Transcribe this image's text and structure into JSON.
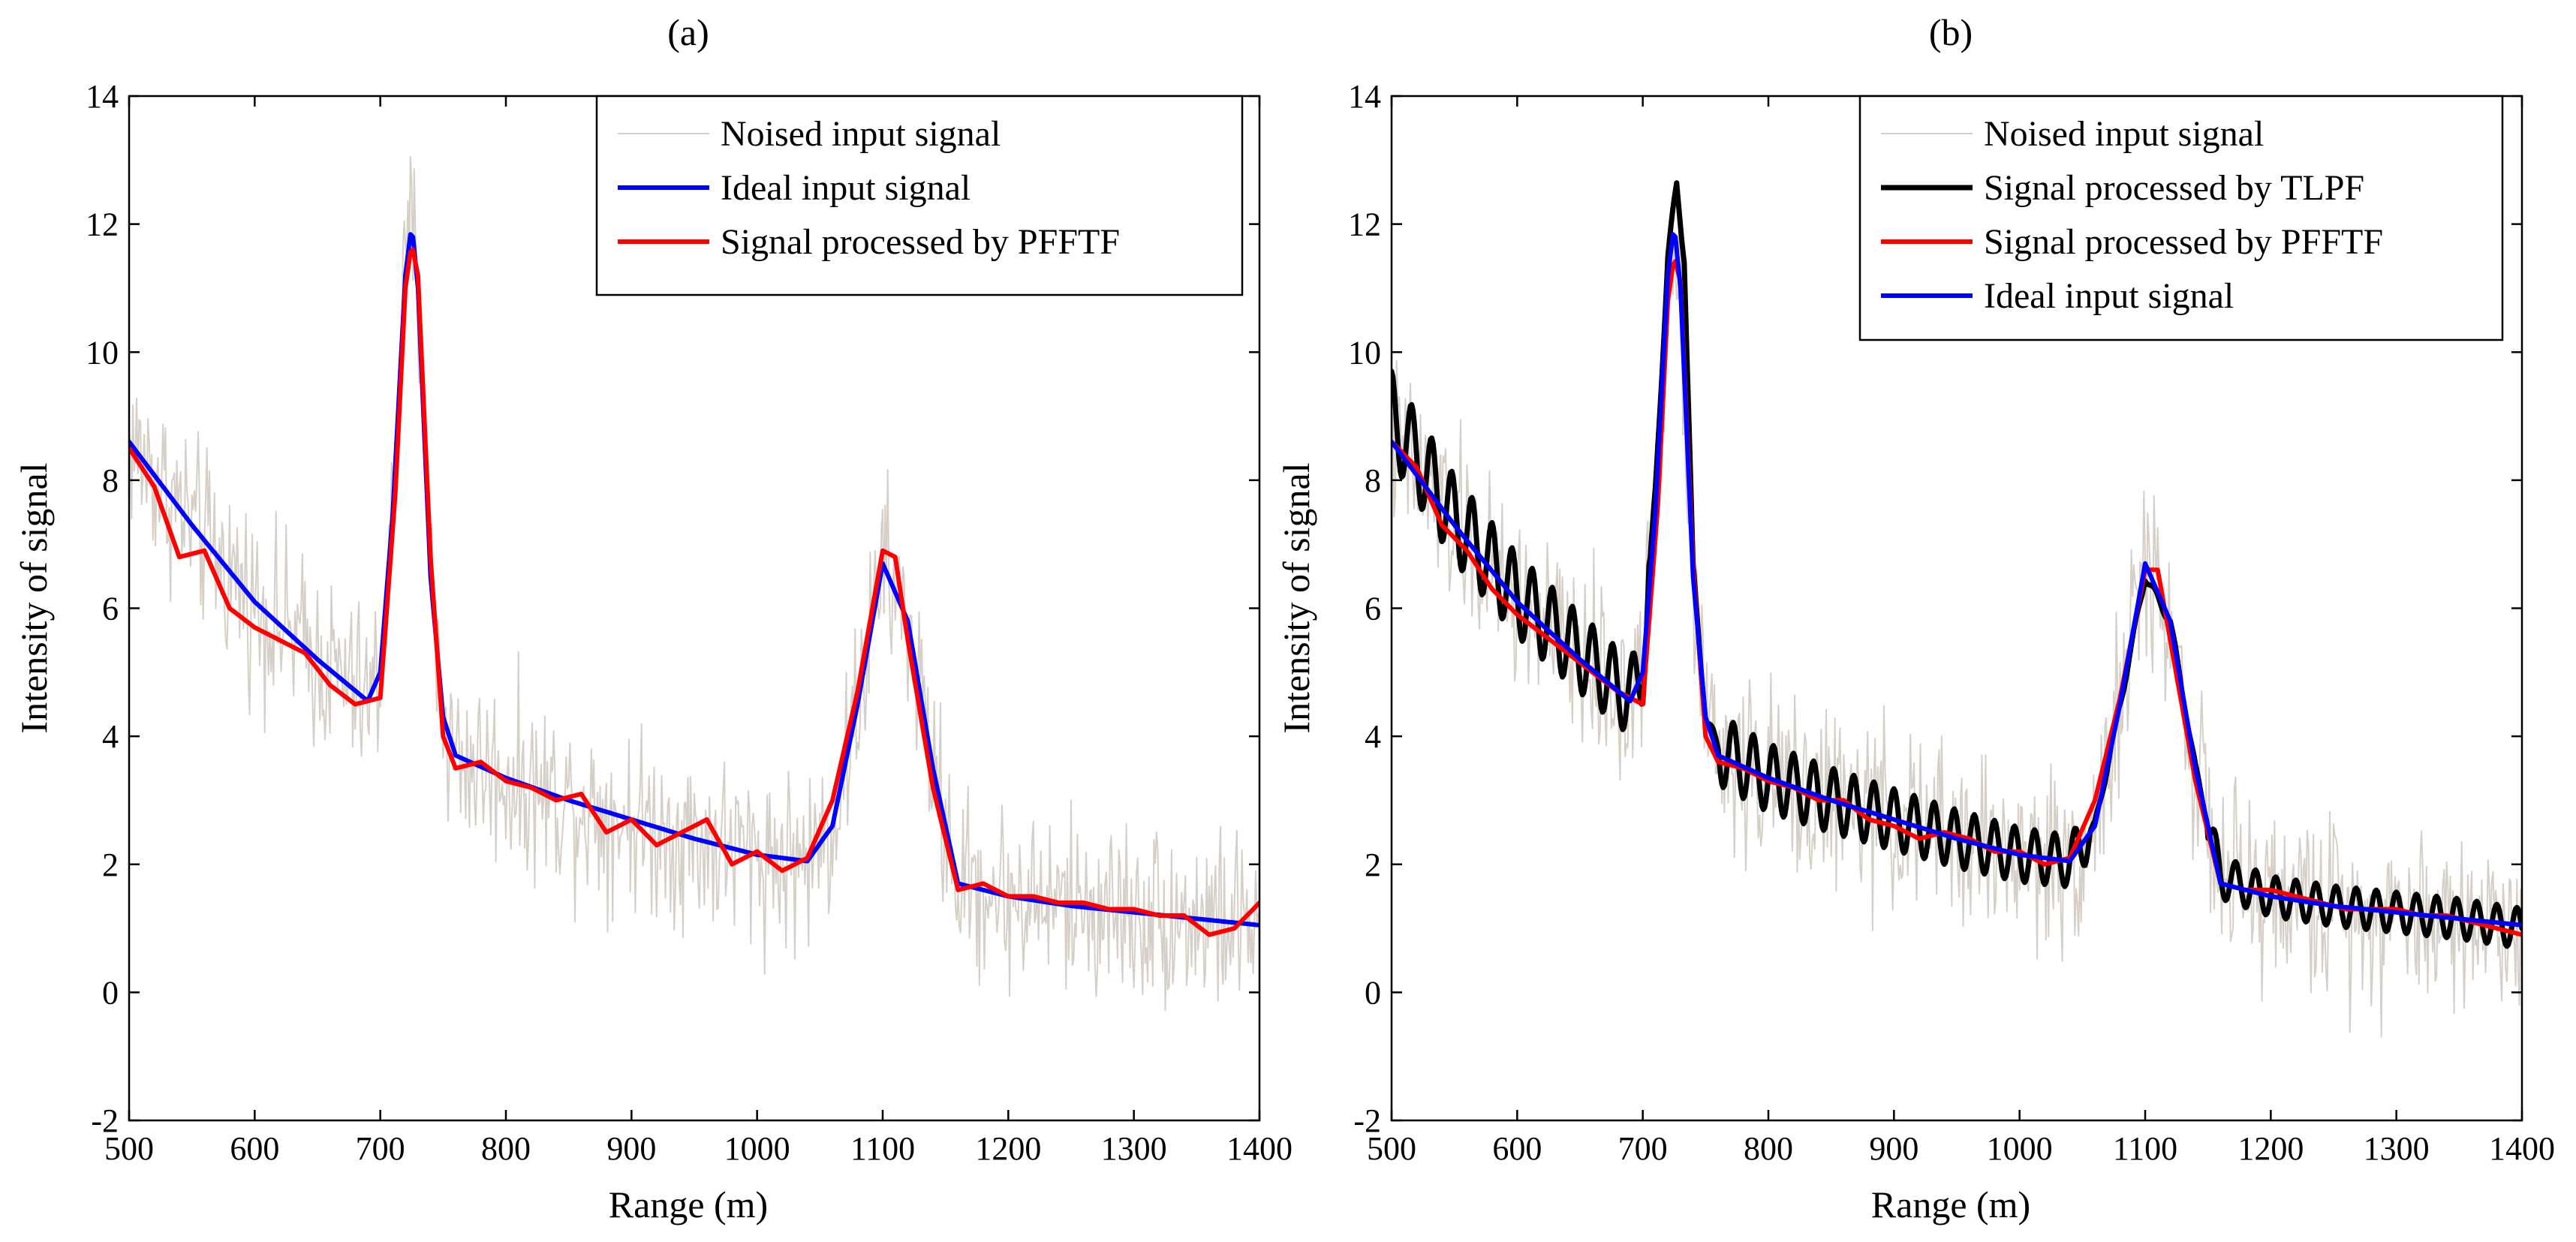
{
  "chart_data": [
    {
      "type": "line",
      "title": "(a)",
      "xlabel": "Range (m)",
      "ylabel": "Intensity of signal",
      "xlim": [
        500,
        1400
      ],
      "ylim": [
        -2,
        14
      ],
      "xticks": [
        500,
        600,
        700,
        800,
        900,
        1000,
        1100,
        1200,
        1300,
        1400
      ],
      "yticks": [
        -2,
        0,
        2,
        4,
        6,
        8,
        10,
        12,
        14
      ],
      "legend_position": "top-right",
      "series": [
        {
          "name": "Noised input signal",
          "color": "#d6cfc7",
          "kind": "noised",
          "noise_amplitude": 1.4,
          "x": [
            500,
            550,
            600,
            650,
            690,
            700,
            710,
            720,
            725,
            730,
            740,
            750,
            760,
            800,
            850,
            900,
            950,
            1000,
            1040,
            1060,
            1080,
            1100,
            1120,
            1140,
            1160,
            1200,
            1250,
            1300,
            1350,
            1400
          ],
          "y": [
            8.6,
            7.3,
            6.1,
            5.2,
            4.55,
            5.0,
            7.5,
            11.2,
            12.0,
            11.0,
            6.5,
            4.3,
            3.7,
            3.35,
            3.0,
            2.7,
            2.4,
            2.15,
            2.05,
            2.6,
            4.5,
            6.7,
            5.8,
            3.5,
            1.7,
            1.5,
            1.35,
            1.25,
            1.15,
            1.05
          ]
        },
        {
          "name": "Ideal input signal",
          "color": "#0000ff",
          "kind": "ideal",
          "x": [
            500,
            550,
            600,
            650,
            690,
            700,
            710,
            720,
            725,
            730,
            740,
            750,
            760,
            800,
            850,
            900,
            950,
            1000,
            1040,
            1060,
            1080,
            1100,
            1120,
            1140,
            1160,
            1200,
            1250,
            1300,
            1350,
            1400
          ],
          "y": [
            8.6,
            7.3,
            6.1,
            5.2,
            4.55,
            5.0,
            7.5,
            11.2,
            12.0,
            11.0,
            6.5,
            4.3,
            3.7,
            3.35,
            3.0,
            2.7,
            2.4,
            2.15,
            2.05,
            2.6,
            4.5,
            6.7,
            5.8,
            3.5,
            1.7,
            1.5,
            1.35,
            1.25,
            1.15,
            1.05
          ]
        },
        {
          "name": "Signal processed by PFFTF",
          "color": "#ff0000",
          "kind": "processed",
          "x": [
            500,
            520,
            540,
            560,
            580,
            600,
            620,
            640,
            660,
            680,
            700,
            712,
            720,
            725,
            730,
            740,
            750,
            760,
            780,
            800,
            820,
            840,
            860,
            880,
            900,
            920,
            940,
            960,
            980,
            1000,
            1020,
            1040,
            1060,
            1080,
            1100,
            1110,
            1120,
            1140,
            1160,
            1180,
            1200,
            1220,
            1240,
            1260,
            1280,
            1300,
            1320,
            1340,
            1360,
            1380,
            1400
          ],
          "y": [
            8.5,
            7.9,
            6.8,
            6.9,
            6.0,
            5.7,
            5.5,
            5.3,
            4.8,
            4.5,
            4.6,
            7.8,
            11.0,
            11.7,
            11.2,
            6.8,
            4.0,
            3.5,
            3.6,
            3.3,
            3.2,
            3.0,
            3.1,
            2.5,
            2.7,
            2.3,
            2.5,
            2.7,
            2.0,
            2.2,
            1.9,
            2.1,
            3.0,
            4.7,
            6.9,
            6.8,
            5.5,
            3.2,
            1.6,
            1.7,
            1.5,
            1.5,
            1.4,
            1.4,
            1.3,
            1.3,
            1.2,
            1.2,
            0.9,
            1.0,
            1.4
          ]
        }
      ]
    },
    {
      "type": "line",
      "title": "(b)",
      "xlabel": "Range (m)",
      "ylabel": "Intensity of signal",
      "xlim": [
        500,
        1400
      ],
      "ylim": [
        -2,
        14
      ],
      "xticks": [
        500,
        600,
        700,
        800,
        900,
        1000,
        1100,
        1200,
        1300,
        1400
      ],
      "yticks": [
        -2,
        0,
        2,
        4,
        6,
        8,
        10,
        12,
        14
      ],
      "legend_position": "top-right",
      "series": [
        {
          "name": "Noised input signal",
          "color": "#d6cfc7",
          "kind": "noised",
          "noise_amplitude": 1.4,
          "x": [
            500,
            550,
            600,
            650,
            690,
            700,
            710,
            720,
            725,
            730,
            740,
            750,
            760,
            800,
            850,
            900,
            950,
            1000,
            1040,
            1060,
            1080,
            1100,
            1120,
            1140,
            1160,
            1200,
            1250,
            1300,
            1350,
            1400
          ],
          "y": [
            8.6,
            7.3,
            6.1,
            5.2,
            4.55,
            5.0,
            7.5,
            11.2,
            12.0,
            11.0,
            6.5,
            4.3,
            3.7,
            3.35,
            3.0,
            2.7,
            2.4,
            2.15,
            2.05,
            2.6,
            4.5,
            6.7,
            5.8,
            3.5,
            1.7,
            1.5,
            1.35,
            1.25,
            1.15,
            1.05
          ]
        },
        {
          "name": "Signal processed by TLPF",
          "color": "#000000",
          "kind": "oscillating",
          "oscillation_amplitude": 0.7,
          "oscillation_period": 16,
          "x": [
            500,
            550,
            600,
            650,
            690,
            700,
            710,
            720,
            727,
            733,
            740,
            750,
            760,
            800,
            850,
            900,
            950,
            1000,
            1040,
            1060,
            1080,
            1100,
            1120,
            1140,
            1160,
            1200,
            1250,
            1300,
            1350,
            1400
          ],
          "y": [
            9.0,
            7.4,
            6.2,
            5.3,
            4.6,
            5.1,
            7.8,
            11.5,
            12.6,
            11.5,
            6.6,
            4.3,
            3.8,
            3.35,
            3.0,
            2.7,
            2.4,
            2.15,
            2.05,
            2.6,
            4.5,
            6.5,
            5.8,
            3.5,
            1.8,
            1.5,
            1.35,
            1.25,
            1.15,
            1.0
          ]
        },
        {
          "name": "Signal processed by PFFTF",
          "color": "#ff0000",
          "kind": "processed",
          "x": [
            500,
            520,
            540,
            560,
            580,
            600,
            620,
            640,
            660,
            680,
            700,
            712,
            720,
            725,
            730,
            740,
            750,
            760,
            780,
            800,
            820,
            840,
            860,
            880,
            900,
            920,
            940,
            960,
            980,
            1000,
            1020,
            1040,
            1060,
            1080,
            1100,
            1110,
            1120,
            1140,
            1160,
            1180,
            1200,
            1220,
            1240,
            1260,
            1280,
            1300,
            1320,
            1340,
            1360,
            1380,
            1400
          ],
          "y": [
            8.6,
            8.2,
            7.3,
            6.9,
            6.3,
            5.9,
            5.6,
            5.3,
            5.0,
            4.7,
            4.5,
            7.6,
            10.8,
            11.5,
            11.1,
            6.7,
            4.0,
            3.6,
            3.5,
            3.3,
            3.2,
            3.0,
            3.0,
            2.7,
            2.6,
            2.4,
            2.5,
            2.4,
            2.2,
            2.2,
            2.0,
            2.1,
            3.0,
            4.6,
            6.6,
            6.6,
            5.5,
            3.3,
            1.7,
            1.6,
            1.6,
            1.5,
            1.4,
            1.3,
            1.3,
            1.3,
            1.2,
            1.2,
            1.1,
            1.0,
            0.9
          ]
        },
        {
          "name": "Ideal input signal",
          "color": "#0000ff",
          "kind": "ideal",
          "x": [
            500,
            550,
            600,
            650,
            690,
            700,
            710,
            720,
            725,
            730,
            740,
            750,
            760,
            800,
            850,
            900,
            950,
            1000,
            1040,
            1060,
            1080,
            1100,
            1120,
            1140,
            1160,
            1200,
            1250,
            1300,
            1350,
            1400
          ],
          "y": [
            8.6,
            7.3,
            6.1,
            5.2,
            4.55,
            5.0,
            7.5,
            11.2,
            12.0,
            11.0,
            6.5,
            4.3,
            3.7,
            3.35,
            3.0,
            2.7,
            2.4,
            2.15,
            2.05,
            2.6,
            4.5,
            6.7,
            5.8,
            3.5,
            1.7,
            1.5,
            1.35,
            1.25,
            1.15,
            1.05
          ]
        }
      ]
    }
  ]
}
